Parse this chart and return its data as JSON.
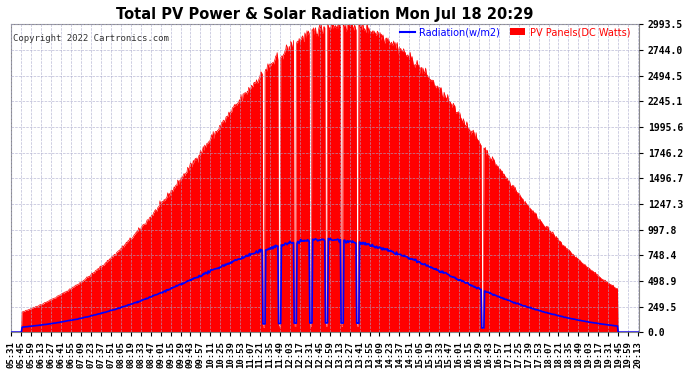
{
  "title": "Total PV Power & Solar Radiation Mon Jul 18 20:29",
  "copyright": "Copyright 2022 Cartronics.com",
  "legend_radiation": "Radiation(w/m2)",
  "legend_pv": "PV Panels(DC Watts)",
  "yticks": [
    0.0,
    249.5,
    498.9,
    748.4,
    997.8,
    1247.3,
    1496.7,
    1746.2,
    1995.6,
    2245.1,
    2494.5,
    2744.0,
    2993.5
  ],
  "ymax": 2993.5,
  "bg_color": "#ffffff",
  "plot_bg_color": "#ffffff",
  "grid_color": "#aaaacc",
  "pv_fill_color": "#ff0000",
  "radiation_line_color": "#0000ff",
  "title_color": "#000000",
  "copyright_color": "#000000",
  "xtick_label_color": "#000000",
  "ytick_label_color": "#000000",
  "n_points": 180
}
